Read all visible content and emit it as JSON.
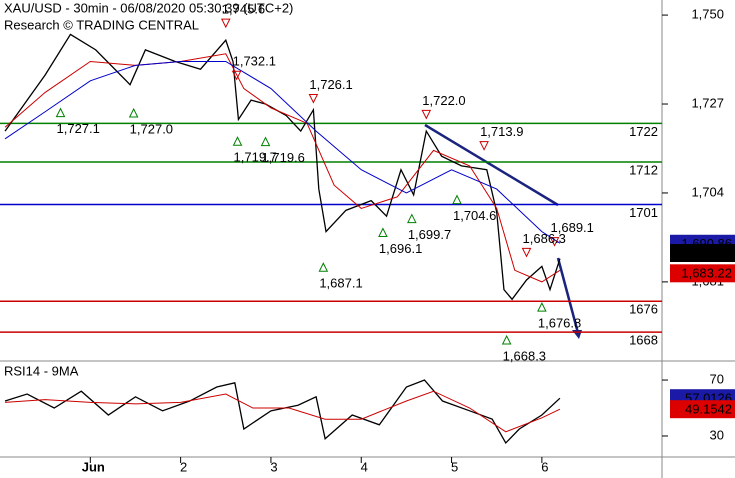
{
  "chart_data": [
    {
      "type": "line",
      "title": "XAU/USD - 30min - 06/08/2020 05:30:39 (UTC+2)",
      "subtitle": "Research © TRADING CENTRAL",
      "xlim": [
        0,
        7.33
      ],
      "xticks": [
        {
          "value": 1,
          "label": "Jun"
        },
        2,
        3,
        4,
        5,
        6
      ],
      "ylim": [
        1660.8,
        1753.9
      ],
      "yticks": [
        {
          "value": 1750,
          "label": "1,750"
        },
        {
          "value": 1727,
          "label": "1,727"
        },
        {
          "value": 1704,
          "label": "1,704"
        },
        {
          "value": 1681,
          "label": "1,681"
        }
      ],
      "series": [
        {
          "color": "#000000",
          "x": [
            0.056,
            0.5,
            0.78,
            1.06,
            1.44,
            1.61,
            1.94,
            2.22,
            2.5,
            2.58,
            2.64,
            2.78,
            2.94,
            3.17,
            3.33,
            3.47,
            3.53,
            3.61,
            3.83,
            4.11,
            4.28,
            4.44,
            4.58,
            4.72,
            4.89,
            5.11,
            5.39,
            5.5,
            5.58,
            5.67,
            5.83,
            6.0,
            6.09,
            6.2
          ],
          "values": [
            1720,
            1734.5,
            1745,
            1741,
            1732,
            1741,
            1738,
            1736,
            1743.5,
            1738,
            1723,
            1728,
            1727,
            1724,
            1720,
            1725.5,
            1705,
            1694,
            1699.5,
            1702,
            1698,
            1710,
            1703.5,
            1720,
            1713.5,
            1711,
            1710,
            1699,
            1679,
            1676.5,
            1681.5,
            1685,
            1679,
            1687
          ]
        },
        {
          "color": "#cc0000",
          "x": [
            0.056,
            0.5,
            1.0,
            1.5,
            2.0,
            2.5,
            2.7,
            3.0,
            3.4,
            3.7,
            4.0,
            4.4,
            4.8,
            5.2,
            5.5,
            5.7,
            6.0,
            6.2
          ],
          "values": [
            1721,
            1730,
            1738,
            1737,
            1738,
            1740,
            1731,
            1726,
            1722,
            1706,
            1700,
            1703,
            1715,
            1711,
            1700,
            1684,
            1681,
            1684
          ]
        },
        {
          "color": "#0000cc",
          "x": [
            0.056,
            0.5,
            1.0,
            1.5,
            2.0,
            2.5,
            3.0,
            3.5,
            4.0,
            4.5,
            5.0,
            5.5,
            6.0,
            6.2
          ],
          "values": [
            1718,
            1725,
            1733,
            1737,
            1738,
            1738,
            1731,
            1720,
            1710,
            1704,
            1710,
            1705,
            1694,
            1691
          ]
        }
      ],
      "levels": [
        {
          "value": 1722,
          "color": "#008000"
        },
        {
          "value": 1712,
          "color": "#008000"
        },
        {
          "value": 1701,
          "color": "#0000cc"
        },
        {
          "value": 1676,
          "color": "#cc0000"
        },
        {
          "value": 1668,
          "color": "#cc0000"
        }
      ],
      "price_tags": [
        {
          "value": 1690.86,
          "label": "1,690.86",
          "color": "#1a1aa6"
        },
        {
          "value": 1688.47,
          "label": "1,688.47",
          "color": "#000000"
        },
        {
          "value": 1683.22,
          "label": "1,683.22",
          "color": "#dd0000"
        }
      ],
      "annotations": [
        {
          "x": 2.5,
          "value": 1745.6,
          "label": "1,745.6",
          "marker": "down"
        },
        {
          "x": 2.62,
          "value": 1732.1,
          "label": "1,732.1",
          "marker": "down"
        },
        {
          "x": 3.47,
          "value": 1726.1,
          "label": "1,726.1",
          "marker": "down"
        },
        {
          "x": 4.72,
          "value": 1722.0,
          "label": "1,722.0",
          "marker": "down"
        },
        {
          "x": 5.36,
          "value": 1713.9,
          "label": "1,713.9",
          "marker": "down"
        },
        {
          "x": 6.14,
          "value": 1689.1,
          "label": "1,689.1",
          "marker": "down"
        },
        {
          "x": 5.83,
          "value": 1686.3,
          "label": "1,686.3",
          "marker": "down"
        },
        {
          "x": 0.67,
          "value": 1727.1,
          "label": "1,727.1",
          "marker": "up"
        },
        {
          "x": 1.48,
          "value": 1727.0,
          "label": "1,727.0",
          "marker": "up"
        },
        {
          "x": 2.63,
          "value": 1719.7,
          "label": "1,719.7",
          "marker": "up"
        },
        {
          "x": 2.94,
          "value": 1719.6,
          "label": "1,719.6",
          "marker": "up"
        },
        {
          "x": 5.06,
          "value": 1704.6,
          "label": "1,704.6",
          "marker": "up"
        },
        {
          "x": 4.24,
          "value": 1696.1,
          "label": "1,696.1",
          "marker": "up"
        },
        {
          "x": 4.56,
          "value": 1699.7,
          "label": "1,699.7",
          "marker": "up"
        },
        {
          "x": 3.58,
          "value": 1687.1,
          "label": "1,687.1",
          "marker": "up"
        },
        {
          "x": 6.0,
          "value": 1676.8,
          "label": "1,676.8",
          "marker": "up"
        },
        {
          "x": 5.61,
          "value": 1668.3,
          "label": "1,668.3",
          "marker": "up"
        }
      ]
    },
    {
      "type": "line",
      "title": "RSI14 - 9MA",
      "xlim": [
        0,
        7.33
      ],
      "ylim": [
        16.4,
        82.9
      ],
      "yticks": [
        70,
        30
      ],
      "series": [
        {
          "color": "#000000",
          "x": [
            0.056,
            0.3,
            0.6,
            0.9,
            1.2,
            1.5,
            1.8,
            2.1,
            2.4,
            2.6,
            2.7,
            3.0,
            3.3,
            3.5,
            3.6,
            3.9,
            4.2,
            4.5,
            4.7,
            4.9,
            5.2,
            5.45,
            5.6,
            5.75,
            6.0,
            6.2
          ],
          "values": [
            55,
            60,
            50,
            62,
            45,
            58,
            48,
            55,
            65,
            68,
            35,
            48,
            52,
            58,
            28,
            45,
            38,
            65,
            70,
            55,
            48,
            42,
            25,
            35,
            45,
            57.0126
          ]
        },
        {
          "color": "#cc0000",
          "x": [
            0.056,
            0.5,
            1.0,
            1.5,
            2.0,
            2.5,
            2.8,
            3.2,
            3.6,
            4.0,
            4.5,
            4.8,
            5.2,
            5.6,
            6.0,
            6.2
          ],
          "values": [
            54,
            56,
            54,
            53,
            54,
            60,
            50,
            50,
            42,
            42,
            55,
            62,
            50,
            33,
            43,
            49.1542
          ]
        }
      ],
      "price_tags": [
        {
          "value": 57.0126,
          "color": "#1a1aa6"
        },
        {
          "value": 49.1542,
          "color": "#dd0000"
        }
      ]
    }
  ]
}
